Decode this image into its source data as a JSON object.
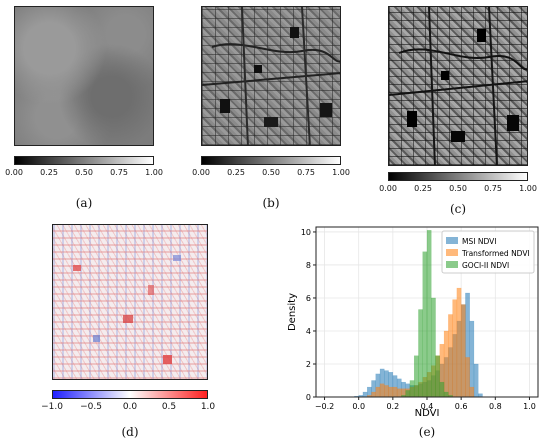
{
  "panels": {
    "a": {
      "caption": "(a)",
      "colorbar_ticks": [
        "0.00",
        "0.25",
        "0.50",
        "0.75",
        "1.00"
      ]
    },
    "b": {
      "caption": "(b)",
      "colorbar_ticks": [
        "0.00",
        "0.25",
        "0.50",
        "0.75",
        "1.00"
      ]
    },
    "c": {
      "caption": "(c)",
      "colorbar_ticks": [
        "0.00",
        "0.25",
        "0.50",
        "0.75",
        "1.00"
      ]
    },
    "d": {
      "caption": "(d)",
      "colorbar_ticks": [
        "−1.0",
        "−0.5",
        "0.0",
        "0.5",
        "1.0"
      ]
    },
    "e": {
      "caption": "(e)"
    }
  },
  "chart_data": {
    "type": "bar",
    "title": "",
    "xlabel": "NDVI",
    "ylabel": "Density",
    "xlim": [
      -0.25,
      1.05
    ],
    "ylim": [
      0,
      10.3
    ],
    "xticks": [
      "−0.2",
      "0.0",
      "0.2",
      "0.4",
      "0.6",
      "0.8",
      "1.0"
    ],
    "yticks": [
      "0",
      "2",
      "4",
      "6",
      "8",
      "10"
    ],
    "grid": true,
    "legend_position": "top-right",
    "bin_width": 0.025,
    "series": [
      {
        "name": "MSI NDVI",
        "color": "#1f77b4",
        "x": [
          -0.025,
          0.0,
          0.025,
          0.05,
          0.075,
          0.1,
          0.125,
          0.15,
          0.175,
          0.2,
          0.225,
          0.25,
          0.275,
          0.3,
          0.325,
          0.35,
          0.375,
          0.4,
          0.425,
          0.45,
          0.475,
          0.5,
          0.525,
          0.55,
          0.575,
          0.6,
          0.625,
          0.65,
          0.675,
          0.7
        ],
        "values": [
          0.05,
          0.1,
          0.3,
          0.6,
          1.0,
          1.4,
          1.7,
          1.6,
          1.5,
          1.3,
          1.1,
          0.9,
          0.8,
          0.7,
          0.7,
          0.8,
          0.9,
          1.0,
          1.3,
          1.6,
          2.0,
          2.4,
          3.0,
          3.8,
          4.6,
          5.6,
          6.3,
          4.6,
          2.0,
          0.2
        ]
      },
      {
        "name": "Transformed NDVI",
        "color": "#ff7f0e",
        "x": [
          0.05,
          0.075,
          0.1,
          0.125,
          0.15,
          0.175,
          0.2,
          0.225,
          0.25,
          0.275,
          0.3,
          0.325,
          0.35,
          0.375,
          0.4,
          0.425,
          0.45,
          0.475,
          0.5,
          0.525,
          0.55,
          0.575,
          0.6,
          0.625,
          0.65
        ],
        "values": [
          0.1,
          0.3,
          0.6,
          0.8,
          0.7,
          0.6,
          0.6,
          0.5,
          0.5,
          0.5,
          0.6,
          0.7,
          0.9,
          1.2,
          1.5,
          1.9,
          2.5,
          3.2,
          4.0,
          5.0,
          5.9,
          6.6,
          5.6,
          2.4,
          0.6
        ]
      },
      {
        "name": "GOCI-II NDVI",
        "color": "#2ca02c",
        "x": [
          0.25,
          0.275,
          0.3,
          0.325,
          0.35,
          0.375,
          0.4,
          0.425,
          0.45,
          0.475,
          0.5,
          0.525
        ],
        "values": [
          0.1,
          0.4,
          1.0,
          2.5,
          5.3,
          8.8,
          10.1,
          6.0,
          2.5,
          0.9,
          0.3,
          0.1
        ]
      }
    ]
  }
}
